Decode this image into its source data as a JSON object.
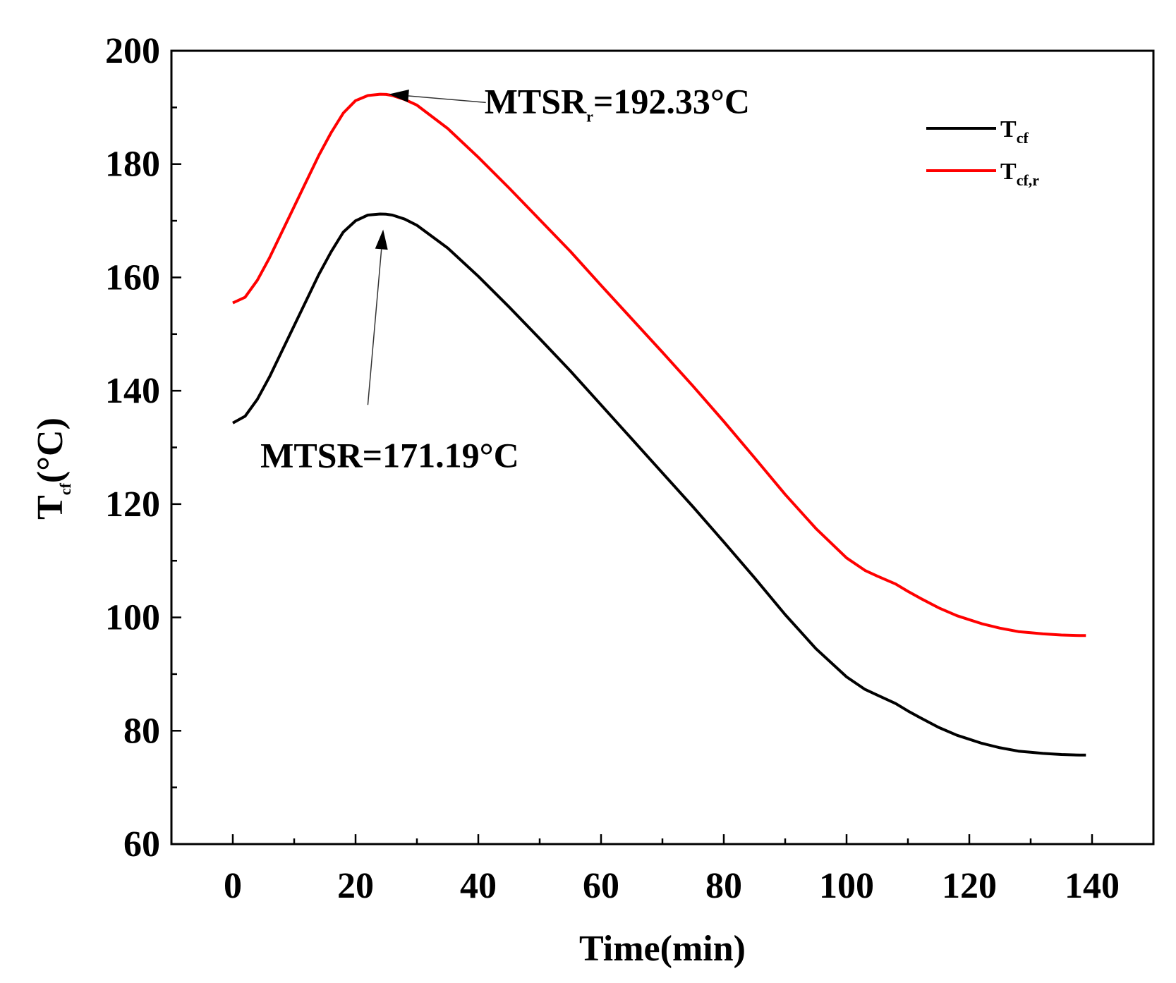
{
  "chart_data": {
    "type": "line",
    "xlabel": "Time(min)",
    "ylabel": {
      "main": "T",
      "sub": "cf",
      "rest": "(°C)"
    },
    "xlim": [
      -10,
      150
    ],
    "ylim": [
      60,
      200
    ],
    "xticks": [
      0,
      20,
      40,
      60,
      80,
      100,
      120,
      140
    ],
    "yticks": [
      60,
      80,
      100,
      120,
      140,
      160,
      180,
      200
    ],
    "x_minor_step": 10,
    "y_minor_step": 10,
    "grid": false,
    "legend_position": "top-right",
    "series": [
      {
        "name": {
          "main": "T",
          "sub": "cf"
        },
        "color": "#000000",
        "x": [
          0,
          2,
          4,
          6,
          8,
          10,
          12,
          14,
          16,
          18,
          20,
          22,
          24,
          25,
          26,
          28,
          30,
          35,
          40,
          45,
          50,
          55,
          60,
          65,
          70,
          75,
          80,
          85,
          90,
          95,
          100,
          103,
          105,
          108,
          110,
          112,
          115,
          118,
          120,
          122,
          125,
          128,
          130,
          132,
          135,
          138,
          139
        ],
        "y": [
          134.3,
          135.5,
          138.5,
          142.5,
          147,
          151.5,
          156,
          160.5,
          164.5,
          168,
          170,
          171,
          171.19,
          171.15,
          171,
          170.3,
          169.2,
          165.2,
          160.2,
          154.8,
          149.2,
          143.5,
          137.5,
          131.5,
          125.5,
          119.5,
          113.3,
          107,
          100.5,
          94.5,
          89.5,
          87.3,
          86.3,
          84.8,
          83.5,
          82.3,
          80.6,
          79.2,
          78.5,
          77.8,
          77,
          76.4,
          76.2,
          76,
          75.8,
          75.7,
          75.7
        ]
      },
      {
        "name": {
          "main": "T",
          "sub": "cf,r"
        },
        "color": "#ff0000",
        "x": [
          0,
          2,
          4,
          6,
          8,
          10,
          12,
          14,
          16,
          18,
          20,
          22,
          24,
          25,
          26,
          28,
          30,
          35,
          40,
          45,
          50,
          55,
          60,
          65,
          70,
          75,
          80,
          85,
          90,
          95,
          100,
          103,
          105,
          108,
          110,
          112,
          115,
          118,
          120,
          122,
          125,
          128,
          130,
          132,
          135,
          138,
          139
        ],
        "y": [
          155.5,
          156.5,
          159.5,
          163.5,
          168,
          172.5,
          177,
          181.5,
          185.5,
          189,
          191.2,
          192.1,
          192.33,
          192.3,
          192.1,
          191.4,
          190.4,
          186.3,
          181.2,
          175.8,
          170.2,
          164.6,
          158.6,
          152.7,
          146.8,
          140.8,
          134.6,
          128.2,
          121.7,
          115.7,
          110.5,
          108.3,
          107.3,
          105.9,
          104.6,
          103.4,
          101.7,
          100.3,
          99.6,
          98.9,
          98.1,
          97.5,
          97.3,
          97.1,
          96.9,
          96.8,
          96.8
        ]
      }
    ],
    "annotations": [
      {
        "label": {
          "main": "MTSR",
          "sub": "r",
          "rest": "=192.33°C"
        },
        "target": [
          24.5,
          192.33
        ],
        "text_at": [
          41,
          189
        ]
      },
      {
        "label": {
          "main": "MTSR=171.19°C"
        },
        "target": [
          24.5,
          171.19
        ],
        "text_at": [
          4.5,
          126.5
        ]
      }
    ]
  }
}
